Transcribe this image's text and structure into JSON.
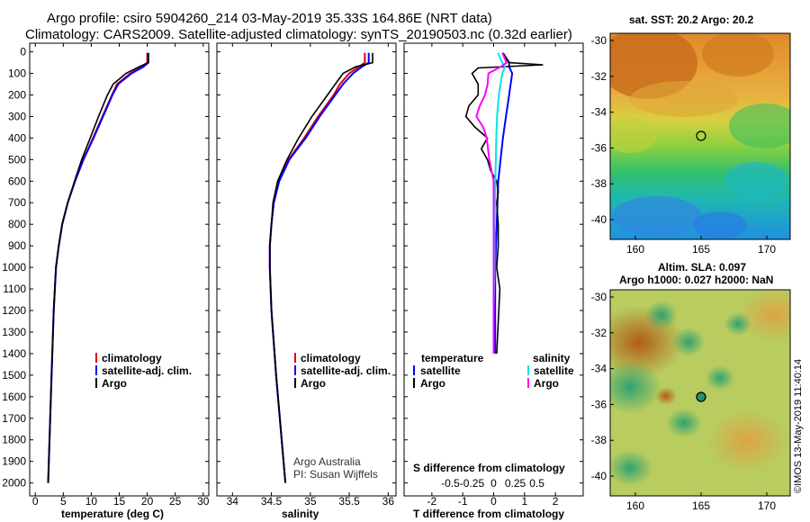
{
  "header": {
    "line1": "Argo profile: csiro 5904260_214 03-May-2019 35.33S 164.86E (NRT data)",
    "line2": "Climatology: CARS2009. Satellite-adjusted climatology: synTS_20190503.nc (0.32d earlier)"
  },
  "colors": {
    "climatology": "#e00000",
    "satellite": "#0000ff",
    "argo": "#000000",
    "sal_satellite": "#00e5e5",
    "sal_argo": "#ff00ff"
  },
  "depth_axis": {
    "ticks": [
      0,
      100,
      200,
      300,
      400,
      500,
      600,
      700,
      800,
      900,
      1000,
      1100,
      1200,
      1300,
      1400,
      1500,
      1600,
      1700,
      1800,
      1900,
      2000
    ]
  },
  "chart_data": [
    {
      "type": "line",
      "name": "temperature",
      "xlabel": "temperature (deg C)",
      "ylabel": "depth",
      "xlim": [
        -1,
        31
      ],
      "ylim": [
        -40,
        2060
      ],
      "xticks": [
        0,
        5,
        10,
        15,
        20,
        25,
        30
      ],
      "legend": [
        "climatology",
        "satellite-adj. clim.",
        "Argo"
      ],
      "series": [
        {
          "name": "climatology",
          "depth": [
            5,
            50,
            70,
            100,
            150,
            200,
            300,
            400,
            500,
            600,
            700,
            800,
            900,
            1000,
            1200,
            1500,
            2000
          ],
          "values": [
            20,
            20,
            19,
            17,
            14.6,
            13.7,
            12,
            10.3,
            8.6,
            7.1,
            5.8,
            4.8,
            4.2,
            3.7,
            3.3,
            2.9,
            2.3
          ]
        },
        {
          "name": "satellite-adj. clim.",
          "depth": [
            5,
            50,
            70,
            100,
            150,
            200,
            300,
            400,
            500,
            600,
            700,
            800,
            900,
            1000,
            1200,
            1500,
            2000
          ],
          "values": [
            20.2,
            20.2,
            19.3,
            17.2,
            14.8,
            13.8,
            12.1,
            10.4,
            8.6,
            7.1,
            5.8,
            4.8,
            4.2,
            3.7,
            3.3,
            2.9,
            2.3
          ]
        },
        {
          "name": "Argo",
          "depth": [
            5,
            50,
            70,
            100,
            150,
            200,
            300,
            400,
            500,
            600,
            700,
            800,
            900,
            1000,
            1200,
            1500,
            2000
          ],
          "values": [
            20.2,
            20.2,
            18.5,
            16.2,
            13.9,
            12.9,
            11.3,
            9.8,
            8.3,
            7,
            5.8,
            4.8,
            4.2,
            3.7,
            3.3,
            2.9,
            2.3
          ]
        }
      ]
    },
    {
      "type": "line",
      "name": "salinity",
      "xlabel": "salinity",
      "xlim": [
        33.8,
        36.1
      ],
      "xticks": [
        34,
        34.5,
        35,
        35.5,
        36
      ],
      "legend": [
        "climatology",
        "satellite-adj. clim.",
        "Argo"
      ],
      "credit": [
        "Argo Australia",
        "PI: Susan Wijffels"
      ],
      "series": [
        {
          "name": "climatology",
          "depth": [
            5,
            50,
            70,
            100,
            150,
            200,
            300,
            400,
            500,
            600,
            700,
            800,
            900,
            1000,
            1200,
            1500,
            2000
          ],
          "values": [
            35.7,
            35.7,
            35.62,
            35.5,
            35.38,
            35.3,
            35.1,
            34.92,
            34.72,
            34.6,
            34.53,
            34.5,
            34.48,
            34.48,
            34.5,
            34.56,
            34.68
          ]
        },
        {
          "name": "satellite-adj. clim.",
          "depth": [
            5,
            50,
            70,
            100,
            150,
            200,
            300,
            400,
            500,
            600,
            700,
            800,
            900,
            1000,
            1200,
            1500,
            2000
          ],
          "values": [
            35.75,
            35.75,
            35.66,
            35.55,
            35.42,
            35.32,
            35.12,
            34.94,
            34.73,
            34.6,
            34.53,
            34.5,
            34.48,
            34.48,
            34.5,
            34.56,
            34.68
          ]
        },
        {
          "name": "Argo",
          "depth": [
            5,
            50,
            70,
            100,
            150,
            200,
            300,
            400,
            500,
            600,
            700,
            800,
            900,
            1000,
            1200,
            1500,
            2000
          ],
          "values": [
            35.8,
            35.8,
            35.58,
            35.42,
            35.32,
            35.22,
            35.02,
            34.85,
            34.7,
            34.58,
            34.52,
            34.5,
            34.48,
            34.48,
            34.5,
            34.56,
            34.68
          ]
        }
      ]
    },
    {
      "type": "line",
      "name": "difference",
      "xlabel": "T difference from climatology",
      "xlabel_top": "S difference from climatology",
      "xlim": [
        -2.9,
        2.9
      ],
      "xticks": [
        -2,
        -1,
        0,
        1,
        2
      ],
      "sticks": [
        -0.5,
        -0.25,
        0,
        0.25,
        0.5
      ],
      "legend": {
        "temperature_title": "temperature",
        "salinity_title": "salinity",
        "items": [
          "satellite",
          "Argo",
          "satellite",
          "Argo"
        ]
      },
      "series": [
        {
          "name": "T satellite",
          "depth": [
            5,
            50,
            70,
            100,
            200,
            300,
            400,
            600,
            800,
            1000,
            1400
          ],
          "values": [
            0.3,
            0.5,
            0.5,
            0.6,
            0.5,
            0.4,
            0.3,
            0.15,
            0.1,
            0.05,
            0.05
          ]
        },
        {
          "name": "T Argo",
          "depth": [
            5,
            50,
            60,
            75,
            100,
            150,
            200,
            250,
            300,
            350,
            400,
            450,
            500,
            550,
            600,
            650,
            700,
            800,
            900,
            1000,
            1100,
            1400
          ],
          "values": [
            0.3,
            0.5,
            1.6,
            -0.5,
            -0.7,
            -0.5,
            -0.5,
            -0.8,
            -0.9,
            -0.6,
            -0.2,
            -0.4,
            -0.2,
            -0.1,
            0.1,
            0.15,
            0.1,
            0.15,
            0.15,
            0.1,
            0.2,
            0.1
          ]
        },
        {
          "name": "S satellite",
          "depth": [
            5,
            50,
            70,
            100,
            200,
            300,
            400,
            600,
            800,
            1000,
            1200,
            1400
          ],
          "values": [
            0.05,
            0.1,
            0.13,
            0.1,
            0.06,
            0.04,
            0.03,
            0.02,
            0.01,
            0.01,
            0,
            0
          ]
        },
        {
          "name": "S Argo",
          "depth": [
            5,
            50,
            70,
            100,
            150,
            200,
            250,
            300,
            350,
            400,
            500,
            600,
            700,
            800,
            1000,
            1400
          ],
          "values": [
            0.1,
            0.15,
            0.08,
            -0.06,
            -0.07,
            -0.1,
            -0.16,
            -0.2,
            -0.12,
            -0.08,
            -0.05,
            0,
            0,
            0,
            0,
            0
          ]
        }
      ]
    }
  ],
  "maps": {
    "sst": {
      "title": "sat. SST: 20.2  Argo: 20.2",
      "yticks": [
        -30,
        -32,
        -34,
        -36,
        -38,
        -40
      ],
      "xticks": [
        160,
        165,
        170
      ]
    },
    "sla": {
      "title1": "Altim. SLA: 0.097",
      "title2": "Argo h1000: 0.027 h2000: NaN",
      "yticks": [
        -30,
        -32,
        -34,
        -36,
        -38,
        -40
      ],
      "xticks": [
        160,
        165,
        170
      ]
    }
  },
  "watermark": "©IMOS 13-May-2019 11:40:14"
}
